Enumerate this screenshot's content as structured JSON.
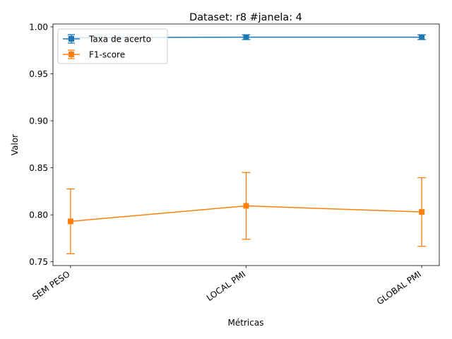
{
  "chart_data": {
    "type": "line",
    "title": "Dataset: r8 #janela: 4",
    "xlabel": "Métricas",
    "ylabel": "Valor",
    "categories": [
      "SEM PESO",
      "LOCAL PMI",
      "GLOBAL PMI"
    ],
    "ylim": [
      0.746,
      1.003
    ],
    "yticks": [
      "0.75",
      "0.80",
      "0.85",
      "0.90",
      "0.95",
      "1.00"
    ],
    "ytick_values": [
      0.75,
      0.8,
      0.85,
      0.9,
      0.95,
      1.0
    ],
    "grid": false,
    "legend_position": "top-left",
    "series": [
      {
        "name": "Taxa de acerto",
        "color": "#1f77b4",
        "marker": "square",
        "values": [
          0.9885,
          0.989,
          0.989
        ],
        "err": [
          0.0025,
          0.0025,
          0.0025
        ]
      },
      {
        "name": "F1-score",
        "color": "#ff7f0e",
        "marker": "square",
        "values": [
          0.793,
          0.8095,
          0.803
        ],
        "err": [
          0.0345,
          0.0355,
          0.0365
        ]
      }
    ]
  }
}
